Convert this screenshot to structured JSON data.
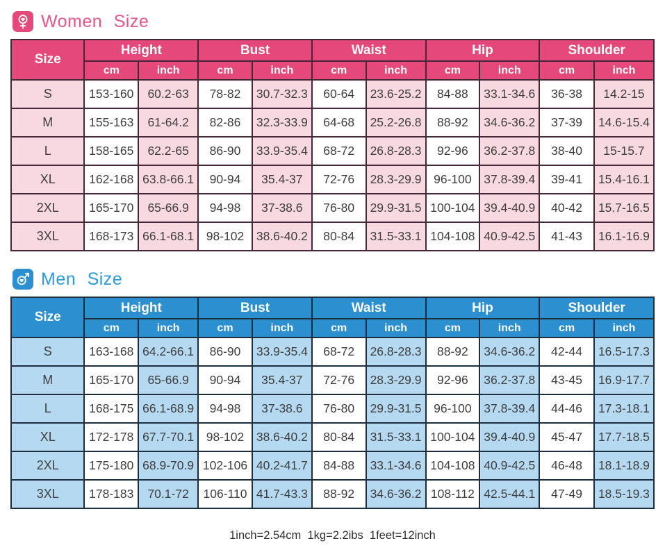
{
  "footer": {
    "note": "1inch=2.54cm  1kg=2.2ibs  1feet=12inch"
  },
  "shared": {
    "size_label": "Size",
    "unit_labels": [
      "cm",
      "inch"
    ],
    "groups": [
      "Height",
      "Bust",
      "Waist",
      "Hip",
      "Shoulder"
    ]
  },
  "chart_data": [
    {
      "type": "table",
      "id": "women",
      "title": "Women Size",
      "icon": "female-heart-icon",
      "colors": {
        "header": "#e5497c",
        "tint": "#f9d9e1",
        "border": "#452837",
        "title": "#e75787"
      },
      "columns": [
        "Size",
        "Height cm",
        "Height inch",
        "Bust cm",
        "Bust inch",
        "Waist cm",
        "Waist inch",
        "Hip cm",
        "Hip inch",
        "Shoulder cm",
        "Shoulder inch"
      ],
      "rows": [
        {
          "size": "S",
          "values": [
            "153-160",
            "60.2-63",
            "78-82",
            "30.7-32.3",
            "60-64",
            "23.6-25.2",
            "84-88",
            "33.1-34.6",
            "36-38",
            "14.2-15"
          ]
        },
        {
          "size": "M",
          "values": [
            "155-163",
            "61-64.2",
            "82-86",
            "32.3-33.9",
            "64-68",
            "25.2-26.8",
            "88-92",
            "34.6-36.2",
            "37-39",
            "14.6-15.4"
          ]
        },
        {
          "size": "L",
          "values": [
            "158-165",
            "62.2-65",
            "86-90",
            "33.9-35.4",
            "68-72",
            "26.8-28.3",
            "92-96",
            "36.2-37.8",
            "38-40",
            "15-15.7"
          ]
        },
        {
          "size": "XL",
          "values": [
            "162-168",
            "63.8-66.1",
            "90-94",
            "35.4-37",
            "72-76",
            "28.3-29.9",
            "96-100",
            "37.8-39.4",
            "39-41",
            "15.4-16.1"
          ]
        },
        {
          "size": "2XL",
          "values": [
            "165-170",
            "65-66.9",
            "94-98",
            "37-38.6",
            "76-80",
            "29.9-31.5",
            "100-104",
            "39.4-40.9",
            "40-42",
            "15.7-16.5"
          ]
        },
        {
          "size": "3XL",
          "values": [
            "168-173",
            "66.1-68.1",
            "98-102",
            "38.6-40.2",
            "80-84",
            "31.5-33.1",
            "104-108",
            "40.9-42.5",
            "41-43",
            "16.1-16.9"
          ]
        }
      ]
    },
    {
      "type": "table",
      "id": "men",
      "title": "Men Size",
      "icon": "male-heart-icon",
      "colors": {
        "header": "#2b8fd0",
        "tint": "#b5d9f1",
        "border": "#1d2f3f",
        "title": "#2e9ad8"
      },
      "columns": [
        "Size",
        "Height cm",
        "Height inch",
        "Bust cm",
        "Bust inch",
        "Waist cm",
        "Waist inch",
        "Hip cm",
        "Hip inch",
        "Shoulder cm",
        "Shoulder inch"
      ],
      "rows": [
        {
          "size": "S",
          "values": [
            "163-168",
            "64.2-66.1",
            "86-90",
            "33.9-35.4",
            "68-72",
            "26.8-28.3",
            "88-92",
            "34.6-36.2",
            "42-44",
            "16.5-17.3"
          ]
        },
        {
          "size": "M",
          "values": [
            "165-170",
            "65-66.9",
            "90-94",
            "35.4-37",
            "72-76",
            "28.3-29.9",
            "92-96",
            "36.2-37.8",
            "43-45",
            "16.9-17.7"
          ]
        },
        {
          "size": "L",
          "values": [
            "168-175",
            "66.1-68.9",
            "94-98",
            "37-38.6",
            "76-80",
            "29.9-31.5",
            "96-100",
            "37.8-39.4",
            "44-46",
            "17.3-18.1"
          ]
        },
        {
          "size": "XL",
          "values": [
            "172-178",
            "67.7-70.1",
            "98-102",
            "38.6-40.2",
            "80-84",
            "31.5-33.1",
            "100-104",
            "39.4-40.9",
            "45-47",
            "17.7-18.5"
          ]
        },
        {
          "size": "2XL",
          "values": [
            "175-180",
            "68.9-70.9",
            "102-106",
            "40.2-41.7",
            "84-88",
            "33.1-34.6",
            "104-108",
            "40.9-42.5",
            "46-48",
            "18.1-18.9"
          ]
        },
        {
          "size": "3XL",
          "values": [
            "178-183",
            "70.1-72",
            "106-110",
            "41.7-43.3",
            "88-92",
            "34.6-36.2",
            "108-112",
            "42.5-44.1",
            "47-49",
            "18.5-19.3"
          ]
        }
      ]
    }
  ]
}
